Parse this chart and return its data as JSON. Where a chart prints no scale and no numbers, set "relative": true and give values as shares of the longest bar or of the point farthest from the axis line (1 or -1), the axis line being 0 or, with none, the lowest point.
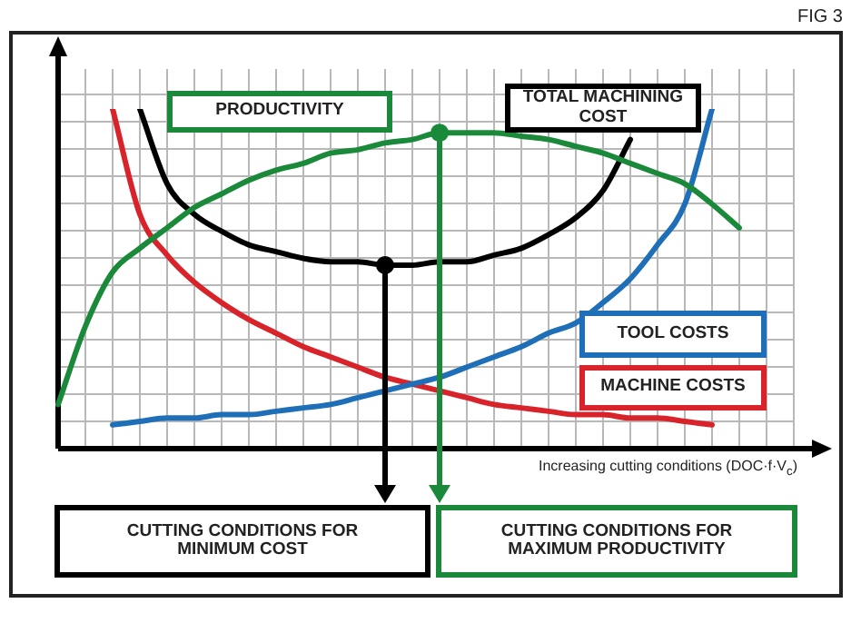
{
  "chart_data": {
    "type": "line",
    "relative": true,
    "grid": true,
    "legend": false,
    "marker": "none",
    "line_style": "solid",
    "xlabel": "Increasing cutting conditions (DOC·f·V$_{c}$)",
    "annotations": [
      "FIG 3",
      "CUTTING CONDITIONS FOR MINIMUM COST",
      "CUTTING CONDITIONS FOR MAXIMUM PRODUCTIVITY"
    ],
    "categories": [
      null,
      null,
      null,
      null,
      null,
      null,
      null,
      null,
      null,
      null,
      null,
      null,
      null,
      null,
      null,
      null,
      null,
      null,
      null,
      null,
      null,
      null,
      null,
      null,
      null,
      null,
      null,
      null
    ],
    "series": [
      {
        "name": "PRODUCTIVITY",
        "color": "#1a8a3a",
        "values": [
          0.13,
          0.36,
          0.52,
          0.59,
          0.65,
          0.71,
          0.75,
          0.79,
          0.82,
          0.84,
          0.87,
          0.88,
          0.9,
          0.91,
          0.93,
          0.93,
          0.93,
          0.92,
          0.91,
          0.89,
          0.87,
          0.84,
          0.81,
          0.78,
          0.72,
          0.65,
          null,
          null
        ]
      },
      {
        "name": "TOTAL MACHINING COST",
        "color": "#000000",
        "values": [
          null,
          null,
          null,
          1.0,
          0.78,
          0.69,
          0.64,
          0.6,
          0.58,
          0.56,
          0.55,
          0.55,
          0.54,
          0.54,
          0.55,
          0.55,
          0.57,
          0.59,
          0.63,
          0.68,
          0.76,
          0.91,
          null,
          null,
          null,
          null,
          null,
          null
        ]
      },
      {
        "name": "TOOL COSTS",
        "color": "#1f6fb8",
        "values": [
          null,
          null,
          0.07,
          0.08,
          0.09,
          0.09,
          0.1,
          0.1,
          0.11,
          0.12,
          0.13,
          0.15,
          0.17,
          0.19,
          0.21,
          0.24,
          0.27,
          0.3,
          0.34,
          0.37,
          0.43,
          0.5,
          0.6,
          0.72,
          1.0,
          null,
          null,
          null
        ]
      },
      {
        "name": "MACHINE COSTS",
        "color": "#d8232a",
        "values": [
          null,
          null,
          1.0,
          0.69,
          0.57,
          0.49,
          0.43,
          0.38,
          0.34,
          0.3,
          0.27,
          0.24,
          0.21,
          0.19,
          0.17,
          0.15,
          0.13,
          0.12,
          0.11,
          0.1,
          0.1,
          0.09,
          0.09,
          0.08,
          0.07,
          null,
          null,
          null
        ]
      }
    ]
  }
}
